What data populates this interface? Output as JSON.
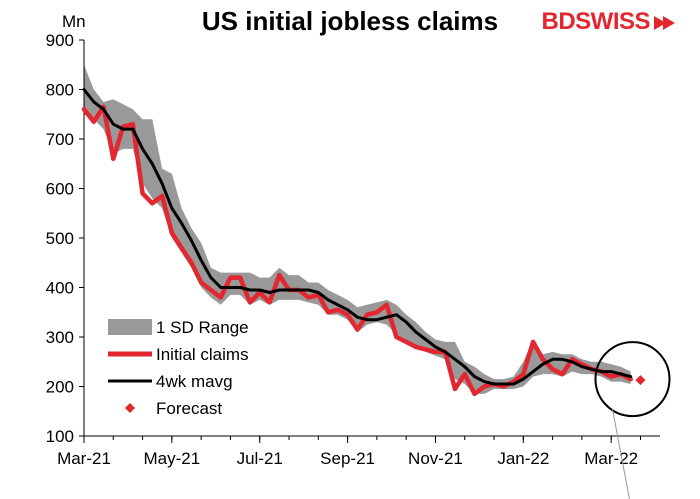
{
  "header": {
    "title": "US initial jobless claims",
    "logo_text_bd": "BD",
    "logo_text_swiss": "SWISS"
  },
  "chart_data": {
    "type": "line",
    "title": "US initial jobless claims",
    "ylabel": "Mn",
    "xlabel": "",
    "ylim": [
      100,
      900
    ],
    "yticks": [
      100,
      200,
      300,
      400,
      500,
      600,
      700,
      800,
      900
    ],
    "x_tick_labels": [
      "Mar-21",
      "May-21",
      "Jul-21",
      "Sep-21",
      "Nov-21",
      "Jan-22",
      "Mar-22"
    ],
    "x_tick_index": [
      0,
      9,
      18,
      27,
      36,
      45,
      54
    ],
    "legend": [
      "1 SD Range",
      "Initial claims",
      "4wk mavg",
      "Forecast"
    ],
    "legend_position": "bottom-left",
    "colors": {
      "range": "#999999",
      "claims": "#e3262f",
      "mavg": "#000000",
      "forecast": "#e3262f",
      "annotation_circle": "#000000"
    },
    "series": [
      {
        "name": "Initial claims",
        "values": [
          760,
          735,
          765,
          660,
          725,
          730,
          590,
          570,
          585,
          510,
          480,
          450,
          410,
          395,
          380,
          420,
          420,
          370,
          390,
          370,
          425,
          395,
          395,
          380,
          385,
          350,
          355,
          345,
          315,
          345,
          350,
          365,
          300,
          290,
          280,
          275,
          270,
          270,
          195,
          225,
          185,
          200,
          205,
          200,
          210,
          225,
          290,
          255,
          235,
          225,
          255,
          245,
          235,
          230,
          220,
          225,
          215
        ]
      },
      {
        "name": "4wk mavg",
        "values": [
          800,
          775,
          760,
          730,
          720,
          720,
          680,
          650,
          610,
          560,
          530,
          495,
          455,
          420,
          400,
          400,
          400,
          395,
          395,
          390,
          395,
          395,
          395,
          395,
          390,
          375,
          365,
          355,
          340,
          335,
          335,
          340,
          345,
          330,
          310,
          295,
          280,
          270,
          255,
          240,
          220,
          210,
          205,
          205,
          205,
          215,
          230,
          245,
          255,
          255,
          250,
          240,
          235,
          230,
          230,
          225,
          220
        ]
      },
      {
        "name": "1 SD Range",
        "upper": [
          850,
          800,
          775,
          780,
          770,
          760,
          740,
          740,
          640,
          630,
          560,
          520,
          490,
          440,
          430,
          430,
          430,
          430,
          420,
          420,
          440,
          425,
          425,
          410,
          410,
          395,
          385,
          375,
          360,
          365,
          370,
          375,
          365,
          345,
          330,
          310,
          295,
          290,
          290,
          250,
          240,
          225,
          215,
          215,
          220,
          250,
          295,
          265,
          270,
          265,
          265,
          255,
          250,
          250,
          245,
          240,
          230
        ],
        "lower": [
          750,
          740,
          720,
          670,
          680,
          680,
          610,
          580,
          560,
          500,
          470,
          440,
          400,
          380,
          365,
          385,
          385,
          365,
          375,
          365,
          375,
          375,
          375,
          370,
          365,
          345,
          345,
          335,
          310,
          325,
          330,
          325,
          305,
          295,
          280,
          270,
          262,
          255,
          215,
          205,
          185,
          185,
          195,
          195,
          195,
          200,
          220,
          225,
          225,
          220,
          230,
          225,
          225,
          220,
          210,
          210,
          205
        ]
      },
      {
        "name": "Forecast",
        "points": [
          {
            "x": 57,
            "y": 213
          }
        ]
      }
    ],
    "annotations": [
      {
        "type": "circle",
        "x": 57,
        "y": 215
      }
    ]
  }
}
